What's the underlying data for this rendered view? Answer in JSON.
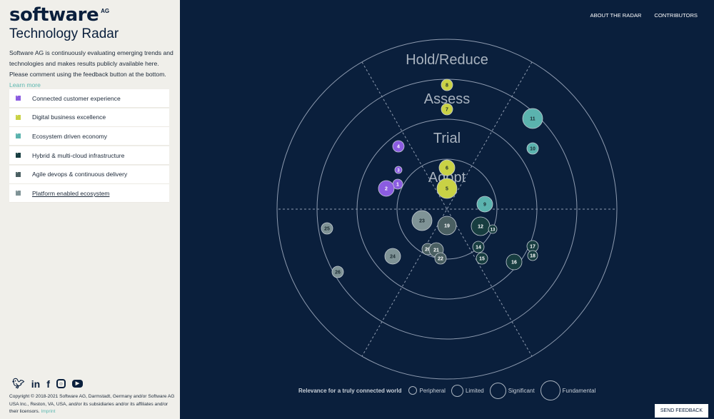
{
  "brand": {
    "logo_text": "software",
    "logo_suffix": "AG"
  },
  "sidebar": {
    "title": "Technology Radar",
    "intro": "Software AG is continuously evaluating emerging trends and technologies and makes results publicly available here. Please comment using the feedback button at the bottom.",
    "learn_more": "Learn more",
    "categories": [
      {
        "label": "Connected customer experience",
        "color": "#8b5ce0"
      },
      {
        "label": "Digital business excellence",
        "color": "#c9d245"
      },
      {
        "label": "Ecosystem driven economy",
        "color": "#5bb3ae"
      },
      {
        "label": "Hybrid & multi-cloud infrastructure",
        "color": "#173d40"
      },
      {
        "label": "Agile devops & continuous delivery",
        "color": "#4a5f62"
      },
      {
        "label": "Platform enabled ecosystem",
        "color": "#7f9396"
      }
    ],
    "social": [
      "twitter-icon",
      "linkedin-icon",
      "facebook-icon",
      "instagram-icon",
      "youtube-icon"
    ],
    "copyright": "Copyright © 2018-2021 Software AG, Darmstadt, Germany and/or Software AG USA Inc., Reston, VA, USA, and/or its subsidiaries and/or its affiliates and/or their licensors.",
    "imprint": "Imprint"
  },
  "nav": {
    "about": "ABOUT THE RADAR",
    "contributors": "CONTRIBUTORS"
  },
  "radar": {
    "rings": [
      "Adopt",
      "Trial",
      "Assess",
      "Hold/Reduce"
    ],
    "blips": [
      {
        "n": "1",
        "cat": 0,
        "ring": "Adopt",
        "size": "Limited"
      },
      {
        "n": "2",
        "cat": 0,
        "ring": "Trial",
        "size": "Significant"
      },
      {
        "n": "3",
        "cat": 0,
        "ring": "Trial",
        "size": "Peripheral"
      },
      {
        "n": "4",
        "cat": 0,
        "ring": "Trial",
        "size": "Limited"
      },
      {
        "n": "5",
        "cat": 1,
        "ring": "Adopt",
        "size": "Fundamental"
      },
      {
        "n": "6",
        "cat": 1,
        "ring": "Adopt",
        "size": "Significant"
      },
      {
        "n": "7",
        "cat": 1,
        "ring": "Assess",
        "size": "Limited"
      },
      {
        "n": "8",
        "cat": 1,
        "ring": "Hold/Reduce",
        "size": "Limited"
      },
      {
        "n": "9",
        "cat": 2,
        "ring": "Adopt",
        "size": "Significant"
      },
      {
        "n": "10",
        "cat": 2,
        "ring": "Assess",
        "size": "Limited"
      },
      {
        "n": "11",
        "cat": 2,
        "ring": "Assess",
        "size": "Fundamental"
      },
      {
        "n": "12",
        "cat": 3,
        "ring": "Adopt",
        "size": "Fundamental"
      },
      {
        "n": "13",
        "cat": 3,
        "ring": "Adopt",
        "size": "Peripheral"
      },
      {
        "n": "14",
        "cat": 3,
        "ring": "Trial",
        "size": "Limited"
      },
      {
        "n": "15",
        "cat": 3,
        "ring": "Trial",
        "size": "Limited"
      },
      {
        "n": "16",
        "cat": 3,
        "ring": "Assess",
        "size": "Significant"
      },
      {
        "n": "17",
        "cat": 3,
        "ring": "Assess",
        "size": "Limited"
      },
      {
        "n": "18",
        "cat": 3,
        "ring": "Assess",
        "size": "Limited"
      },
      {
        "n": "19",
        "cat": 4,
        "ring": "Adopt",
        "size": "Fundamental"
      },
      {
        "n": "20",
        "cat": 4,
        "ring": "Adopt",
        "size": "Limited"
      },
      {
        "n": "21",
        "cat": 4,
        "ring": "Adopt",
        "size": "Significant"
      },
      {
        "n": "22",
        "cat": 4,
        "ring": "Trial",
        "size": "Limited"
      },
      {
        "n": "23",
        "cat": 5,
        "ring": "Adopt",
        "size": "Fundamental"
      },
      {
        "n": "24",
        "cat": 5,
        "ring": "Trial",
        "size": "Significant"
      },
      {
        "n": "25",
        "cat": 5,
        "ring": "Hold/Reduce",
        "size": "Limited"
      },
      {
        "n": "26",
        "cat": 5,
        "ring": "Hold/Reduce",
        "size": "Limited"
      }
    ]
  },
  "legend": {
    "title": "Relevance for a truly connected world",
    "sizes": [
      "Peripheral",
      "Limited",
      "Significant",
      "Fundamental"
    ]
  },
  "feedback": "SEND FEEDBACK"
}
